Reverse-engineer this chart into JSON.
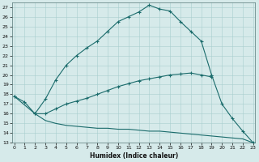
{
  "xlabel": "Humidex (Indice chaleur)",
  "bg_color": "#d6eaea",
  "line_color": "#1a6b6b",
  "grid_color": "#a8cece",
  "line1_x": [
    0,
    1,
    2,
    3,
    4,
    5,
    6,
    7,
    8,
    9,
    10,
    11,
    12,
    13,
    14,
    15,
    16,
    17,
    18,
    19
  ],
  "line1_y": [
    17.8,
    17.2,
    16.0,
    17.5,
    19.5,
    21.0,
    22.0,
    22.8,
    23.5,
    24.5,
    25.5,
    26.0,
    26.5,
    27.2,
    26.8,
    26.6,
    25.5,
    24.5,
    23.5,
    20.0
  ],
  "line2_x": [
    0,
    2,
    3,
    4,
    5,
    6,
    7,
    8,
    9,
    10,
    11,
    12,
    13,
    14,
    15,
    16,
    17,
    18,
    19
  ],
  "line2_y": [
    17.8,
    16.0,
    16.0,
    16.5,
    17.0,
    17.3,
    17.6,
    18.0,
    18.4,
    18.8,
    19.1,
    19.4,
    19.6,
    19.8,
    20.0,
    20.1,
    20.2,
    20.0,
    19.8
  ],
  "line3_x": [
    2,
    3,
    4,
    5,
    6,
    7,
    8,
    9,
    10,
    11,
    12,
    13,
    14,
    15,
    16,
    17,
    18,
    19,
    20,
    21,
    22,
    23
  ],
  "line3_y": [
    16.0,
    15.3,
    15.0,
    14.8,
    14.7,
    14.6,
    14.5,
    14.5,
    14.4,
    14.4,
    14.3,
    14.2,
    14.2,
    14.1,
    14.0,
    13.9,
    13.8,
    13.7,
    13.6,
    13.5,
    13.4,
    13.0
  ],
  "line4_x": [
    19,
    20,
    21,
    22,
    23
  ],
  "line4_y": [
    20.0,
    17.0,
    15.5,
    14.2,
    13.0
  ],
  "xlim": [
    0,
    23
  ],
  "ylim": [
    13,
    27.5
  ],
  "yticks": [
    13,
    14,
    15,
    16,
    17,
    18,
    19,
    20,
    21,
    22,
    23,
    24,
    25,
    26,
    27
  ],
  "xticks": [
    0,
    1,
    2,
    3,
    4,
    5,
    6,
    7,
    8,
    9,
    10,
    11,
    12,
    13,
    14,
    15,
    16,
    17,
    18,
    19,
    20,
    21,
    22,
    23
  ]
}
